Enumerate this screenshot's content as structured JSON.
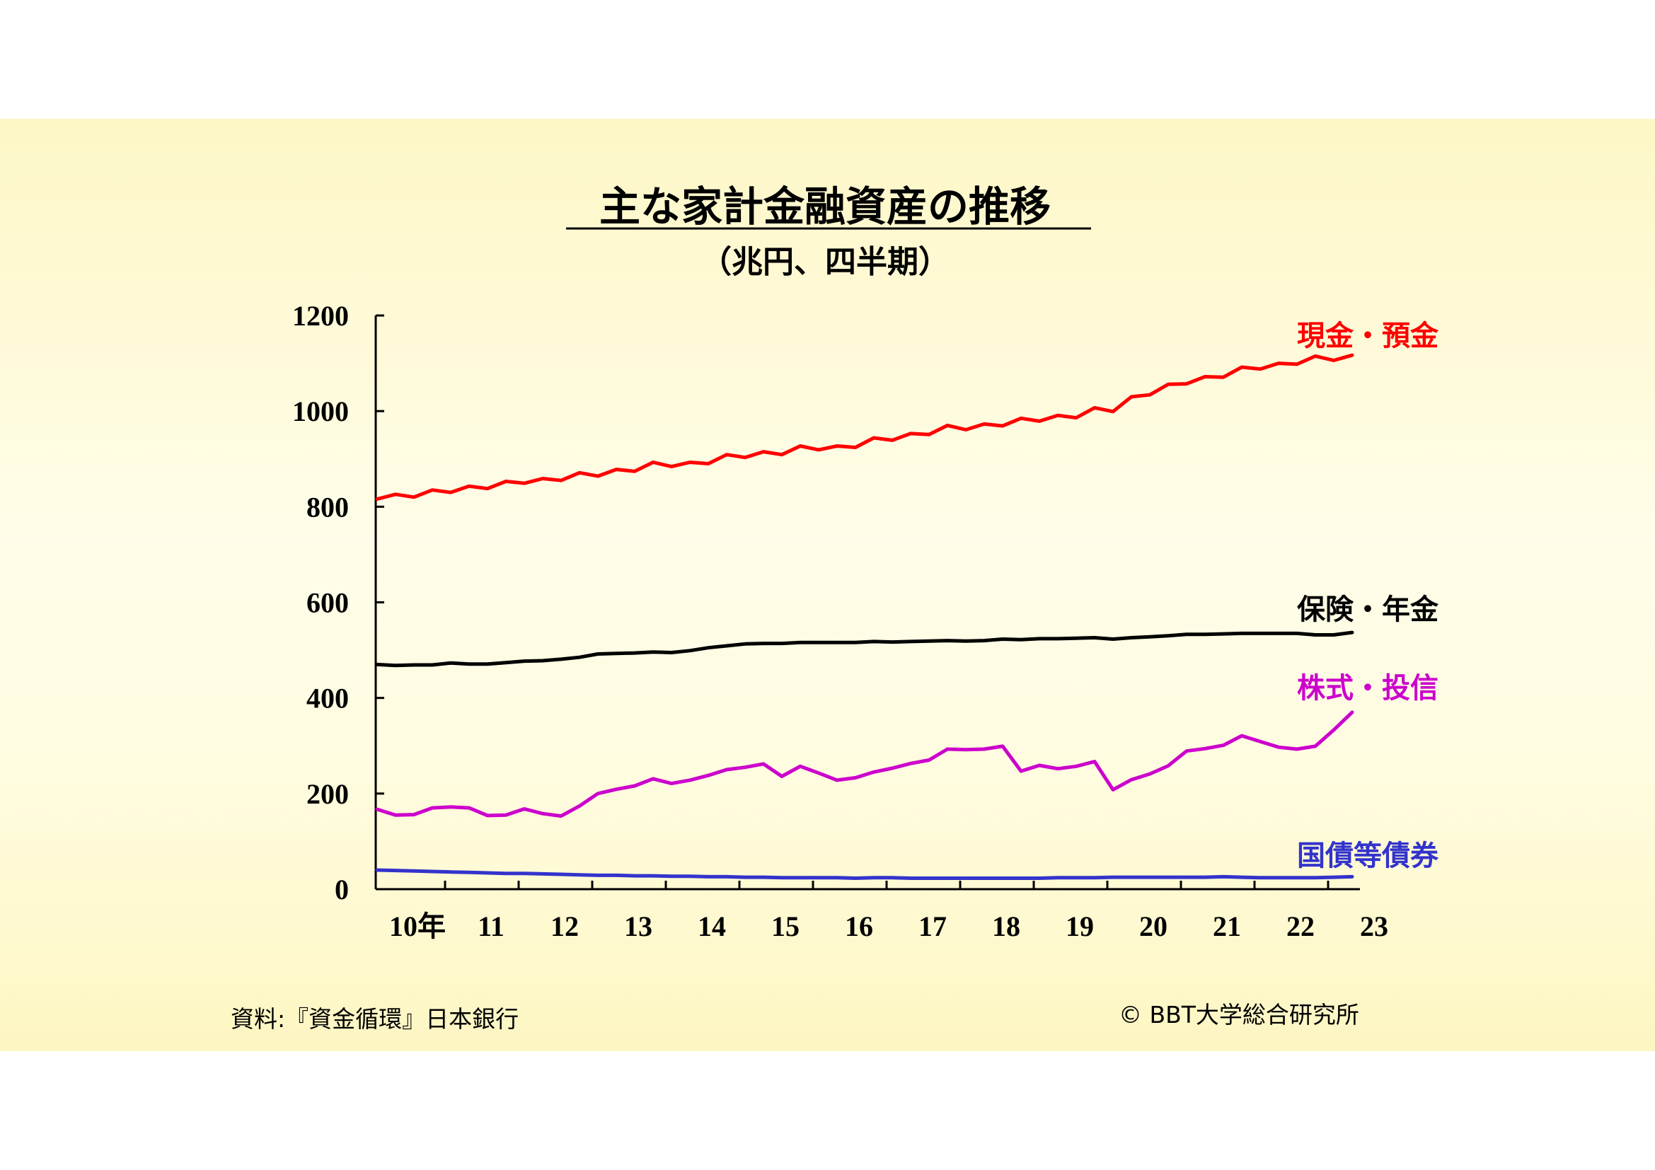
{
  "header": {
    "title": "主な家計金融資産の推移",
    "subtitle": "（兆円、四半期）"
  },
  "footer": {
    "source": "資料:『資金循環』日本銀行",
    "copyright": "© BBT大学総合研究所"
  },
  "colors": {
    "cash": "#ff0000",
    "insurance": "#000000",
    "stocks": "#cc00cc",
    "bonds": "#3333cc"
  },
  "chart_data": {
    "type": "line",
    "title": "主な家計金融資産の推移",
    "subtitle": "（兆円、四半期）",
    "ylim": [
      0,
      1200
    ],
    "yticks": [
      "0",
      "200",
      "400",
      "600",
      "800",
      "1000",
      "1200"
    ],
    "xticks": [
      "10年",
      "11",
      "12",
      "13",
      "14",
      "15",
      "16",
      "17",
      "18",
      "19",
      "20",
      "21",
      "22",
      "23"
    ],
    "grid": false,
    "legend": "line-end labels",
    "series": [
      {
        "name": "現金・預金",
        "color": "#ff0000",
        "values": [
          816,
          826,
          820,
          835,
          830,
          843,
          838,
          853,
          849,
          859,
          855,
          871,
          864,
          878,
          874,
          893,
          884,
          893,
          890,
          909,
          903,
          915,
          909,
          927,
          919,
          927,
          924,
          944,
          939,
          953,
          951,
          970,
          961,
          973,
          969,
          985,
          979,
          991,
          986,
          1007,
          999,
          1030,
          1034,
          1056,
          1057,
          1072,
          1071,
          1092,
          1088,
          1100,
          1098,
          1115,
          1106,
          1117
        ]
      },
      {
        "name": "保険・年金",
        "color": "#000000",
        "values": [
          470,
          468,
          469,
          469,
          473,
          471,
          471,
          474,
          477,
          478,
          481,
          485,
          492,
          493,
          494,
          496,
          495,
          499,
          505,
          509,
          513,
          514,
          514,
          516,
          516,
          516,
          516,
          518,
          517,
          518,
          519,
          520,
          519,
          520,
          523,
          522,
          524,
          524,
          525,
          526,
          523,
          526,
          528,
          530,
          533,
          533,
          534,
          535,
          535,
          535,
          535,
          532,
          532,
          537
        ]
      },
      {
        "name": "株式・投信",
        "color": "#cc00cc",
        "values": [
          167,
          155,
          156,
          170,
          172,
          170,
          154,
          155,
          168,
          158,
          153,
          174,
          200,
          209,
          216,
          231,
          221,
          228,
          238,
          250,
          255,
          262,
          236,
          257,
          243,
          228,
          233,
          245,
          253,
          263,
          270,
          293,
          292,
          293,
          299,
          247,
          259,
          252,
          257,
          267,
          208,
          229,
          241,
          258,
          289,
          294,
          301,
          321,
          309,
          297,
          293,
          299,
          333,
          370
        ]
      },
      {
        "name": "国債等債券",
        "color": "#3333cc",
        "values": [
          40,
          39,
          38,
          37,
          36,
          35,
          34,
          33,
          33,
          32,
          31,
          30,
          29,
          29,
          28,
          28,
          27,
          27,
          26,
          26,
          25,
          25,
          24,
          24,
          24,
          24,
          23,
          24,
          24,
          23,
          23,
          23,
          23,
          23,
          23,
          23,
          23,
          24,
          24,
          24,
          25,
          25,
          25,
          25,
          25,
          25,
          26,
          25,
          24,
          24,
          24,
          24,
          25,
          26
        ]
      }
    ]
  }
}
